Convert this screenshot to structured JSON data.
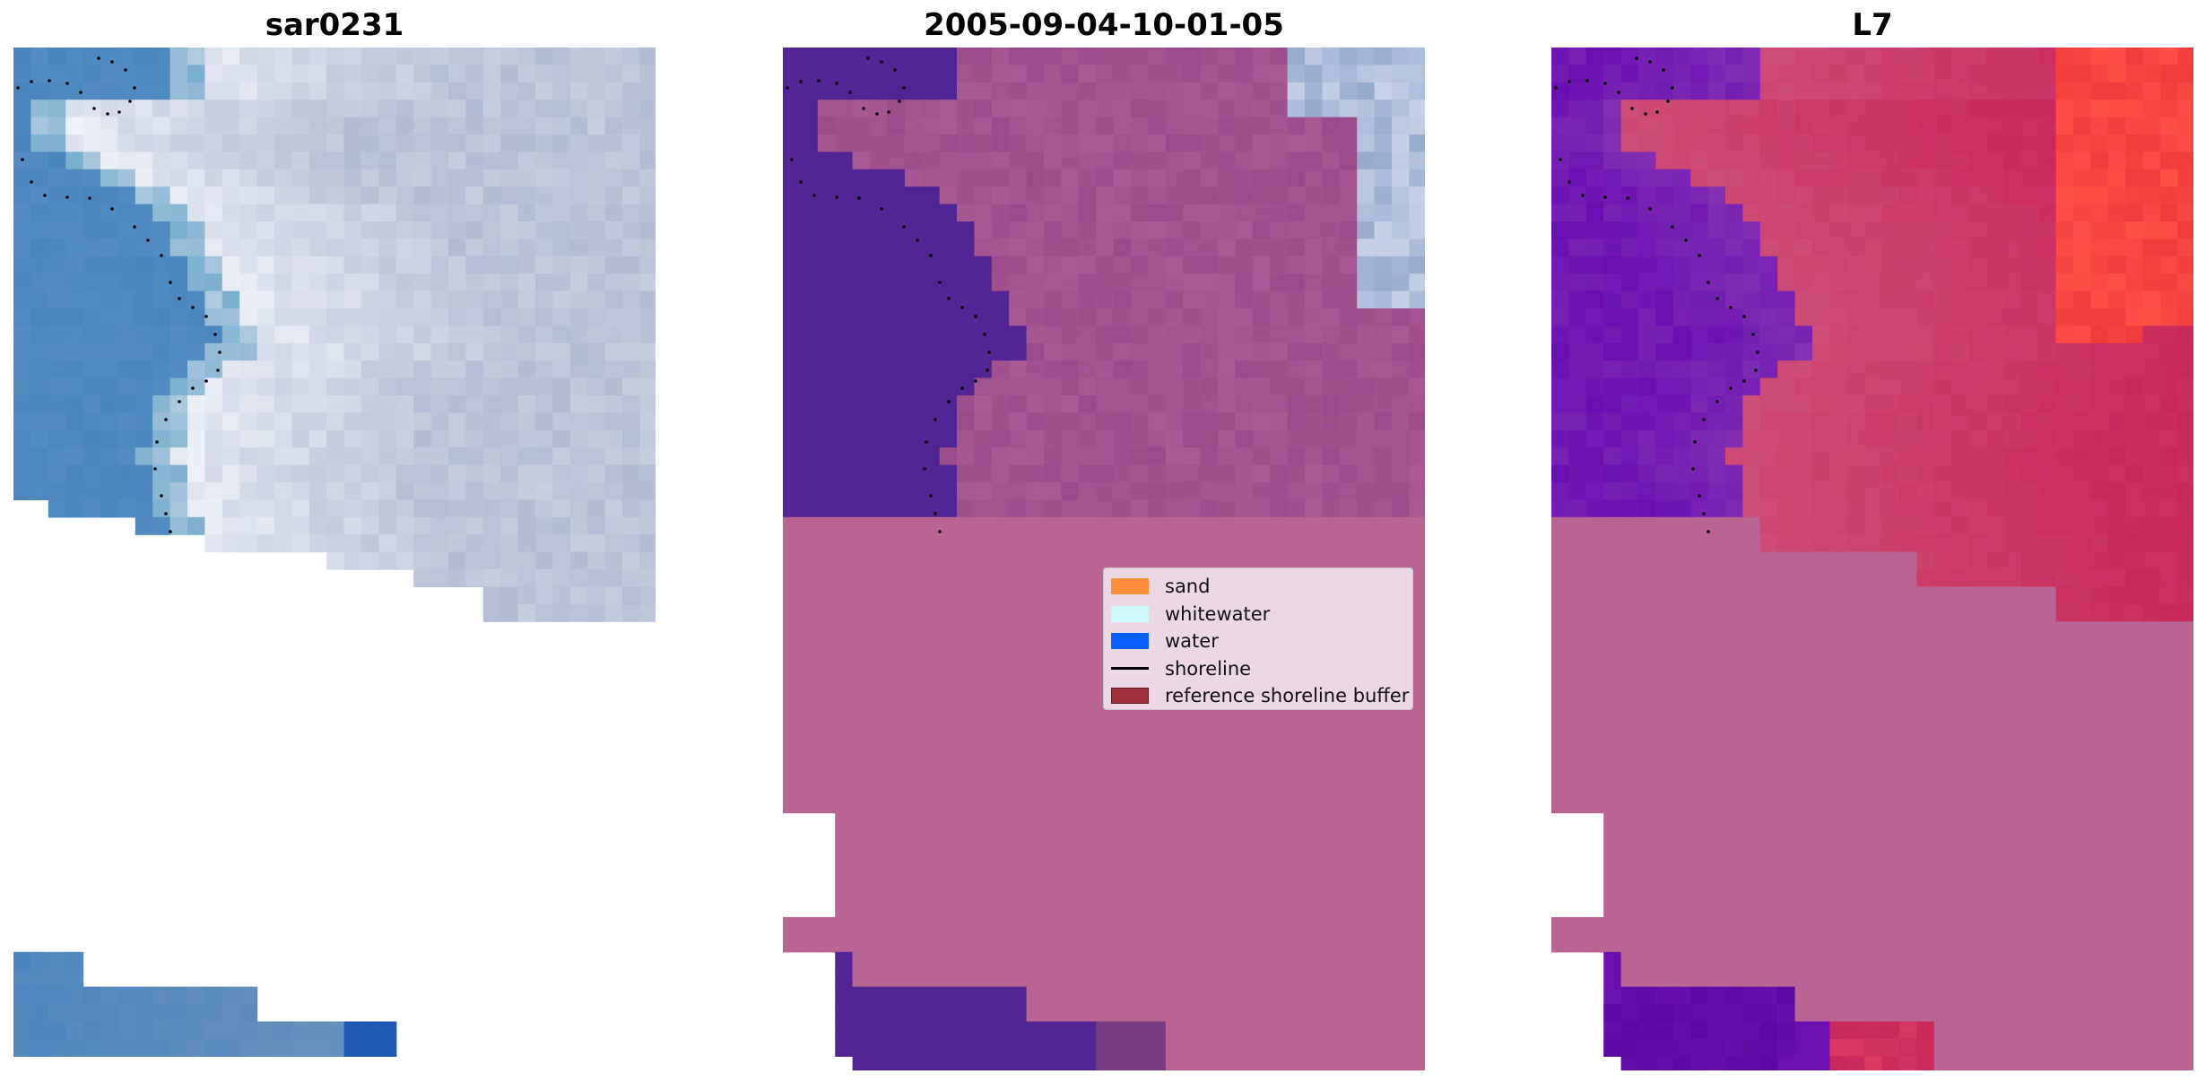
{
  "panels": [
    {
      "title": "sar0231",
      "kind": "rgb"
    },
    {
      "title": "2005-09-04-10-01-05",
      "kind": "classified"
    },
    {
      "title": "L7",
      "kind": "index"
    }
  ],
  "legend": {
    "items": [
      {
        "label": "sand",
        "color": "#ff8e3d",
        "kind": "patch"
      },
      {
        "label": "whitewater",
        "color": "#cdf9fb",
        "kind": "patch"
      },
      {
        "label": "water",
        "color": "#0a60ff",
        "kind": "patch"
      },
      {
        "label": "shoreline",
        "color": "#000000",
        "kind": "line"
      },
      {
        "label": "reference shoreline buffer",
        "color": "#a0303c",
        "kind": "patch"
      }
    ]
  },
  "colors": {
    "sea": "#4a86be",
    "surf": "#d8dcea",
    "land_mask": "#ba6494",
    "water_class": "#522594",
    "sand_class": "#9a4c88",
    "index_land": "#c8285a",
    "index_water": "#6a10b2",
    "blank": "#ffffff"
  }
}
